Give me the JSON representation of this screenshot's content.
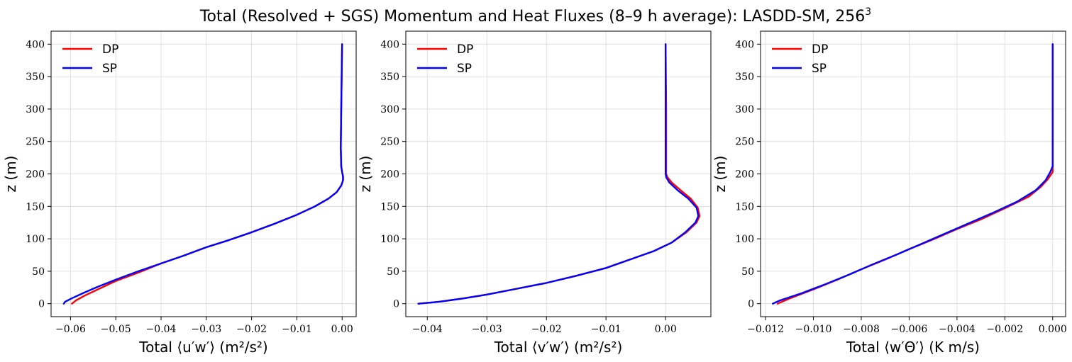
{
  "figure": {
    "title": "Total (Resolved + SGS) Momentum and Heat Fluxes (8–9 h average): LASDD-SM, 256",
    "title_superscript": "3"
  },
  "colors": {
    "DP": "#ff0000",
    "SP": "#0000ff",
    "grid": "#d9d9d9"
  },
  "chart_data": [
    {
      "type": "line",
      "xlabel": "Total ⟨u′w′⟩ (m²/s²)",
      "ylabel": "z (m)",
      "xlim": [
        -0.0643,
        0.0031
      ],
      "ylim": [
        -20,
        420
      ],
      "xticks": [
        -0.06,
        -0.05,
        -0.04,
        -0.03,
        -0.02,
        -0.01,
        0.0
      ],
      "xtick_labels": [
        "−0.06",
        "−0.05",
        "−0.04",
        "−0.03",
        "−0.02",
        "−0.01",
        "0.00"
      ],
      "yticks": [
        0,
        50,
        100,
        150,
        200,
        250,
        300,
        350,
        400
      ],
      "ytick_labels": [
        "0",
        "50",
        "100",
        "150",
        "200",
        "250",
        "300",
        "350",
        "400"
      ],
      "grid": true,
      "legend_position": "upper-left",
      "series": [
        {
          "name": "DP",
          "points": [
            [
              -0.0597,
              0
            ],
            [
              -0.0588,
              5
            ],
            [
              -0.057,
              12
            ],
            [
              -0.054,
              22
            ],
            [
              -0.05,
              35
            ],
            [
              -0.045,
              48
            ],
            [
              -0.04,
              62
            ],
            [
              -0.035,
              74
            ],
            [
              -0.03,
              87
            ],
            [
              -0.025,
              98
            ],
            [
              -0.02,
              110
            ],
            [
              -0.015,
              123
            ],
            [
              -0.01,
              137
            ],
            [
              -0.006,
              150
            ],
            [
              -0.003,
              162
            ],
            [
              -0.0012,
              172
            ],
            [
              -0.0002,
              182
            ],
            [
              0.0002,
              190
            ],
            [
              0.0002,
              196
            ],
            [
              0.0,
              203
            ],
            [
              -0.0002,
              212
            ],
            [
              -0.0003,
              240
            ],
            [
              -0.0002,
              300
            ],
            [
              -0.0001,
              350
            ],
            [
              0.0,
              400
            ]
          ]
        },
        {
          "name": "SP",
          "points": [
            [
              -0.0615,
              0
            ],
            [
              -0.0612,
              3
            ],
            [
              -0.0595,
              9
            ],
            [
              -0.057,
              17
            ],
            [
              -0.054,
              26
            ],
            [
              -0.05,
              37
            ],
            [
              -0.045,
              50
            ],
            [
              -0.04,
              62
            ],
            [
              -0.035,
              74
            ],
            [
              -0.03,
              87
            ],
            [
              -0.025,
              98
            ],
            [
              -0.02,
              110
            ],
            [
              -0.015,
              123
            ],
            [
              -0.01,
              137
            ],
            [
              -0.006,
              150
            ],
            [
              -0.003,
              162
            ],
            [
              -0.0012,
              172
            ],
            [
              -0.0002,
              182
            ],
            [
              0.0002,
              190
            ],
            [
              0.0002,
              196
            ],
            [
              0.0,
              203
            ],
            [
              -0.0002,
              212
            ],
            [
              -0.0003,
              240
            ],
            [
              -0.0002,
              300
            ],
            [
              -0.0001,
              350
            ],
            [
              0.0,
              400
            ]
          ]
        }
      ]
    },
    {
      "type": "line",
      "xlabel": "Total ⟨v′w′⟩ (m²/s²)",
      "ylabel": "z (m)",
      "xlim": [
        -0.0436,
        0.0076
      ],
      "ylim": [
        -20,
        420
      ],
      "xticks": [
        -0.04,
        -0.03,
        -0.02,
        -0.01,
        0.0
      ],
      "xtick_labels": [
        "−0.04",
        "−0.03",
        "−0.02",
        "−0.01",
        "0.00"
      ],
      "yticks": [
        0,
        50,
        100,
        150,
        200,
        250,
        300,
        350,
        400
      ],
      "ytick_labels": [
        "0",
        "50",
        "100",
        "150",
        "200",
        "250",
        "300",
        "350",
        "400"
      ],
      "grid": true,
      "legend_position": "upper-left",
      "series": [
        {
          "name": "DP",
          "points": [
            [
              -0.0415,
              0
            ],
            [
              -0.038,
              3
            ],
            [
              -0.034,
              8
            ],
            [
              -0.03,
              14
            ],
            [
              -0.025,
              23
            ],
            [
              -0.02,
              32
            ],
            [
              -0.015,
              43
            ],
            [
              -0.01,
              55
            ],
            [
              -0.006,
              68
            ],
            [
              -0.002,
              81
            ],
            [
              0.001,
              94
            ],
            [
              0.0035,
              110
            ],
            [
              0.0052,
              125
            ],
            [
              0.0057,
              135
            ],
            [
              0.0054,
              148
            ],
            [
              0.0042,
              162
            ],
            [
              0.0025,
              175
            ],
            [
              0.001,
              187
            ],
            [
              0.0003,
              195
            ],
            [
              0.0001,
              200
            ],
            [
              0.0001,
              210
            ],
            [
              0.0001,
              300
            ],
            [
              0.0,
              400
            ]
          ]
        },
        {
          "name": "SP",
          "points": [
            [
              -0.0415,
              0
            ],
            [
              -0.038,
              3
            ],
            [
              -0.034,
              8
            ],
            [
              -0.03,
              14
            ],
            [
              -0.025,
              23
            ],
            [
              -0.02,
              32
            ],
            [
              -0.015,
              43
            ],
            [
              -0.01,
              55
            ],
            [
              -0.006,
              68
            ],
            [
              -0.002,
              81
            ],
            [
              0.001,
              94
            ],
            [
              0.0033,
              110
            ],
            [
              0.005,
              125
            ],
            [
              0.0055,
              135
            ],
            [
              0.0052,
              148
            ],
            [
              0.0038,
              162
            ],
            [
              0.002,
              175
            ],
            [
              0.0006,
              187
            ],
            [
              0.0001,
              195
            ],
            [
              0.0,
              200
            ],
            [
              0.0,
              210
            ],
            [
              0.0,
              300
            ],
            [
              0.0,
              400
            ]
          ]
        }
      ]
    },
    {
      "type": "line",
      "xlabel": "Total ⟨w′Θ′⟩ (K m/s)",
      "ylabel": "z (m)",
      "xlim": [
        -0.01221,
        0.00054
      ],
      "ylim": [
        -20,
        420
      ],
      "xticks": [
        -0.012,
        -0.01,
        -0.008,
        -0.006,
        -0.004,
        -0.002,
        0.0
      ],
      "xtick_labels": [
        "−0.012",
        "−0.010",
        "−0.008",
        "−0.006",
        "−0.004",
        "−0.002",
        "0.000"
      ],
      "yticks": [
        0,
        50,
        100,
        150,
        200,
        250,
        300,
        350,
        400
      ],
      "ytick_labels": [
        "0",
        "50",
        "100",
        "150",
        "200",
        "250",
        "300",
        "350",
        "400"
      ],
      "grid": true,
      "legend_position": "upper-left",
      "series": [
        {
          "name": "DP",
          "points": [
            [
              -0.0115,
              0
            ],
            [
              -0.011,
              8
            ],
            [
              -0.01,
              22
            ],
            [
              -0.009,
              37
            ],
            [
              -0.008,
              53
            ],
            [
              -0.007,
              68
            ],
            [
              -0.006,
              84
            ],
            [
              -0.005,
              99
            ],
            [
              -0.004,
              115
            ],
            [
              -0.003,
              130
            ],
            [
              -0.002,
              147
            ],
            [
              -0.001,
              165
            ],
            [
              -0.0005,
              180
            ],
            [
              -0.0002,
              192
            ],
            [
              0.0,
              203
            ],
            [
              0.0,
              212
            ],
            [
              0.0,
              220
            ],
            [
              0.0,
              300
            ],
            [
              0.0,
              400
            ]
          ]
        },
        {
          "name": "SP",
          "points": [
            [
              -0.0117,
              0
            ],
            [
              -0.0114,
              5
            ],
            [
              -0.0105,
              16
            ],
            [
              -0.0095,
              30
            ],
            [
              -0.0085,
              45
            ],
            [
              -0.0075,
              61
            ],
            [
              -0.0065,
              76
            ],
            [
              -0.0055,
              92
            ],
            [
              -0.0045,
              108
            ],
            [
              -0.0035,
              124
            ],
            [
              -0.0025,
              140
            ],
            [
              -0.0015,
              157
            ],
            [
              -0.0007,
              175
            ],
            [
              -0.0003,
              190
            ],
            [
              -0.0001,
              203
            ],
            [
              0.0,
              212
            ],
            [
              0.0,
              220
            ],
            [
              0.0,
              300
            ],
            [
              0.0,
              400
            ]
          ]
        }
      ]
    }
  ]
}
